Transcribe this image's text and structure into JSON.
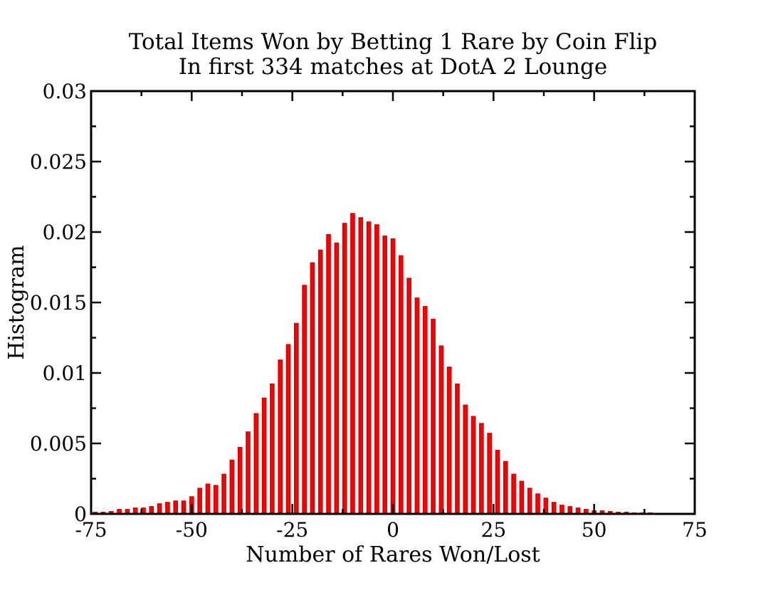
{
  "chart_data": {
    "type": "bar",
    "title": "Total Items Won by Betting 1 Rare by Coin Flip",
    "subtitle": "In first 334 matches at DotA 2 Lounge",
    "xlabel": "Number of Rares Won/Lost",
    "ylabel": "Histogram",
    "xlim": [
      -75,
      75
    ],
    "ylim": [
      0,
      0.03
    ],
    "x_ticks": [
      -75,
      -50,
      -25,
      0,
      25,
      50,
      75
    ],
    "x_tick_labels": [
      "-75",
      "-50",
      "-25",
      "0",
      "25",
      "50",
      "75"
    ],
    "y_ticks": [
      0,
      0.005,
      0.01,
      0.015,
      0.02,
      0.025,
      0.03
    ],
    "y_tick_labels": [
      "0",
      "0.005",
      "0.01",
      "0.015",
      "0.02",
      "0.025",
      "0.03"
    ],
    "bin_width": 1,
    "bar_color": "#ff0000",
    "edge_color": "#e00000",
    "grid": false,
    "legend": "none",
    "x": [
      -74,
      -72,
      -70,
      -68,
      -66,
      -64,
      -62,
      -60,
      -58,
      -56,
      -54,
      -52,
      -50,
      -48,
      -46,
      -44,
      -42,
      -40,
      -38,
      -36,
      -34,
      -32,
      -30,
      -28,
      -26,
      -24,
      -22,
      -20,
      -18,
      -16,
      -14,
      -12,
      -10,
      -8,
      -6,
      -4,
      -2,
      0,
      2,
      4,
      6,
      8,
      10,
      12,
      14,
      16,
      18,
      20,
      22,
      24,
      26,
      28,
      30,
      32,
      34,
      36,
      38,
      40,
      42,
      44,
      46,
      48,
      50,
      52,
      54,
      56,
      58,
      60,
      62,
      64
    ],
    "values": [
      0.0001,
      0.0001,
      0.00015,
      0.0003,
      0.0003,
      0.0004,
      0.0004,
      0.0005,
      0.0007,
      0.0008,
      0.0009,
      0.0009,
      0.0012,
      0.0018,
      0.0021,
      0.002,
      0.0028,
      0.0038,
      0.0047,
      0.0058,
      0.0071,
      0.0082,
      0.0092,
      0.0109,
      0.012,
      0.0135,
      0.0162,
      0.0178,
      0.0187,
      0.0198,
      0.0192,
      0.0206,
      0.0213,
      0.021,
      0.0207,
      0.0205,
      0.0197,
      0.0195,
      0.0183,
      0.0167,
      0.0153,
      0.0147,
      0.0138,
      0.0119,
      0.0104,
      0.0092,
      0.0077,
      0.0069,
      0.0064,
      0.0057,
      0.0045,
      0.0037,
      0.0028,
      0.0023,
      0.0018,
      0.0014,
      0.0011,
      0.0008,
      0.0006,
      0.0005,
      0.0004,
      0.0003,
      0.0002,
      0.0002,
      0.00015,
      0.0001,
      0.0001,
      5e-05,
      5e-05,
      5e-05
    ]
  }
}
